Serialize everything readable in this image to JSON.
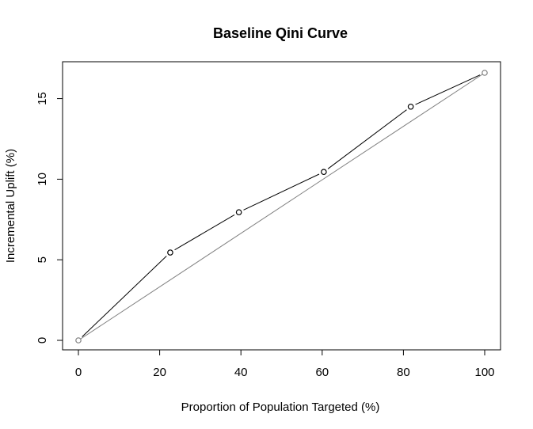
{
  "chart_data": {
    "type": "line",
    "title": "Baseline Qini Curve",
    "xlabel": "Proportion of Population Targeted (%)",
    "ylabel": "Incremental Uplift (%)",
    "xlim": [
      0,
      100
    ],
    "ylim": [
      0,
      16.6
    ],
    "x_ticks": [
      0,
      20,
      40,
      60,
      80,
      100
    ],
    "y_ticks": [
      0,
      5,
      10,
      15
    ],
    "series": [
      {
        "style": "line-with-open-circles",
        "color": "#000000",
        "x": [
          0,
          22.6,
          39.5,
          60.4,
          81.8,
          100
        ],
        "y": [
          0,
          5.45,
          7.95,
          10.45,
          14.5,
          16.6
        ]
      },
      {
        "style": "diagonal-random-baseline",
        "color": "#808080",
        "x": [
          0,
          100
        ],
        "y": [
          0,
          16.6
        ]
      }
    ],
    "grid": false,
    "legend": "none"
  }
}
